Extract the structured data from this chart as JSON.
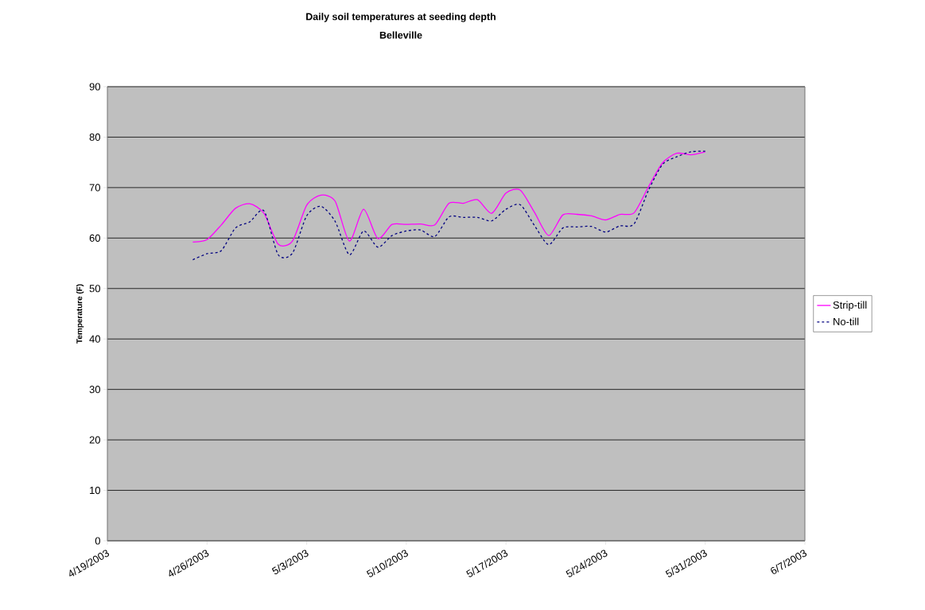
{
  "chart_data": {
    "type": "line",
    "title": "Daily soil temperatures at seeding depth",
    "subtitle": "Belleville",
    "ylabel": "Temperature (F)",
    "x": [
      "2003-04-25",
      "2003-04-26",
      "2003-04-27",
      "2003-04-28",
      "2003-04-29",
      "2003-04-30",
      "2003-05-01",
      "2003-05-02",
      "2003-05-03",
      "2003-05-04",
      "2003-05-05",
      "2003-05-06",
      "2003-05-07",
      "2003-05-08",
      "2003-05-09",
      "2003-05-10",
      "2003-05-11",
      "2003-05-12",
      "2003-05-13",
      "2003-05-14",
      "2003-05-15",
      "2003-05-16",
      "2003-05-17",
      "2003-05-18",
      "2003-05-19",
      "2003-05-20",
      "2003-05-21",
      "2003-05-22",
      "2003-05-23",
      "2003-05-24",
      "2003-05-25",
      "2003-05-26",
      "2003-05-27",
      "2003-05-28",
      "2003-05-29",
      "2003-05-30",
      "2003-05-31"
    ],
    "series": [
      {
        "name": "Strip-till",
        "color": "#ff00ff",
        "line_style": "solid",
        "values": [
          59.2,
          59.7,
          62.6,
          65.9,
          66.8,
          64.9,
          58.8,
          59.4,
          66.5,
          68.5,
          67.3,
          59.4,
          65.7,
          59.9,
          62.7,
          62.7,
          62.8,
          62.6,
          66.9,
          66.9,
          67.6,
          64.9,
          68.9,
          69.5,
          65.1,
          60.5,
          64.6,
          64.7,
          64.4,
          63.6,
          64.7,
          65.0,
          70.1,
          74.9,
          76.8,
          76.5,
          77.1
        ]
      },
      {
        "name": "No-till",
        "color": "#000080",
        "line_style": "dashed",
        "values": [
          55.7,
          56.9,
          57.5,
          62.0,
          63.2,
          65.4,
          56.7,
          57.0,
          64.4,
          66.3,
          63.3,
          56.7,
          61.4,
          58.2,
          60.5,
          61.4,
          61.6,
          60.3,
          64.2,
          64.1,
          64.1,
          63.4,
          65.7,
          66.6,
          62.5,
          58.7,
          62.0,
          62.2,
          62.3,
          61.2,
          62.4,
          62.8,
          69.4,
          74.6,
          76.1,
          77.1,
          77.2
        ]
      }
    ],
    "xlim": [
      "2003-04-19",
      "2003-06-07"
    ],
    "xticks": [
      {
        "value": "2003-04-19",
        "label": "4/19/2003"
      },
      {
        "value": "2003-04-26",
        "label": "4/26/2003"
      },
      {
        "value": "2003-05-03",
        "label": "5/3/2003"
      },
      {
        "value": "2003-05-10",
        "label": "5/10/2003"
      },
      {
        "value": "2003-05-17",
        "label": "5/17/2003"
      },
      {
        "value": "2003-05-24",
        "label": "5/24/2003"
      },
      {
        "value": "2003-05-31",
        "label": "5/31/2003"
      },
      {
        "value": "2003-06-07",
        "label": "6/7/2003"
      }
    ],
    "ylim": [
      0,
      90
    ],
    "yticks": [
      0,
      10,
      20,
      30,
      40,
      50,
      60,
      70,
      80,
      90
    ],
    "grid": "y",
    "legend": "right",
    "marker": "none"
  }
}
